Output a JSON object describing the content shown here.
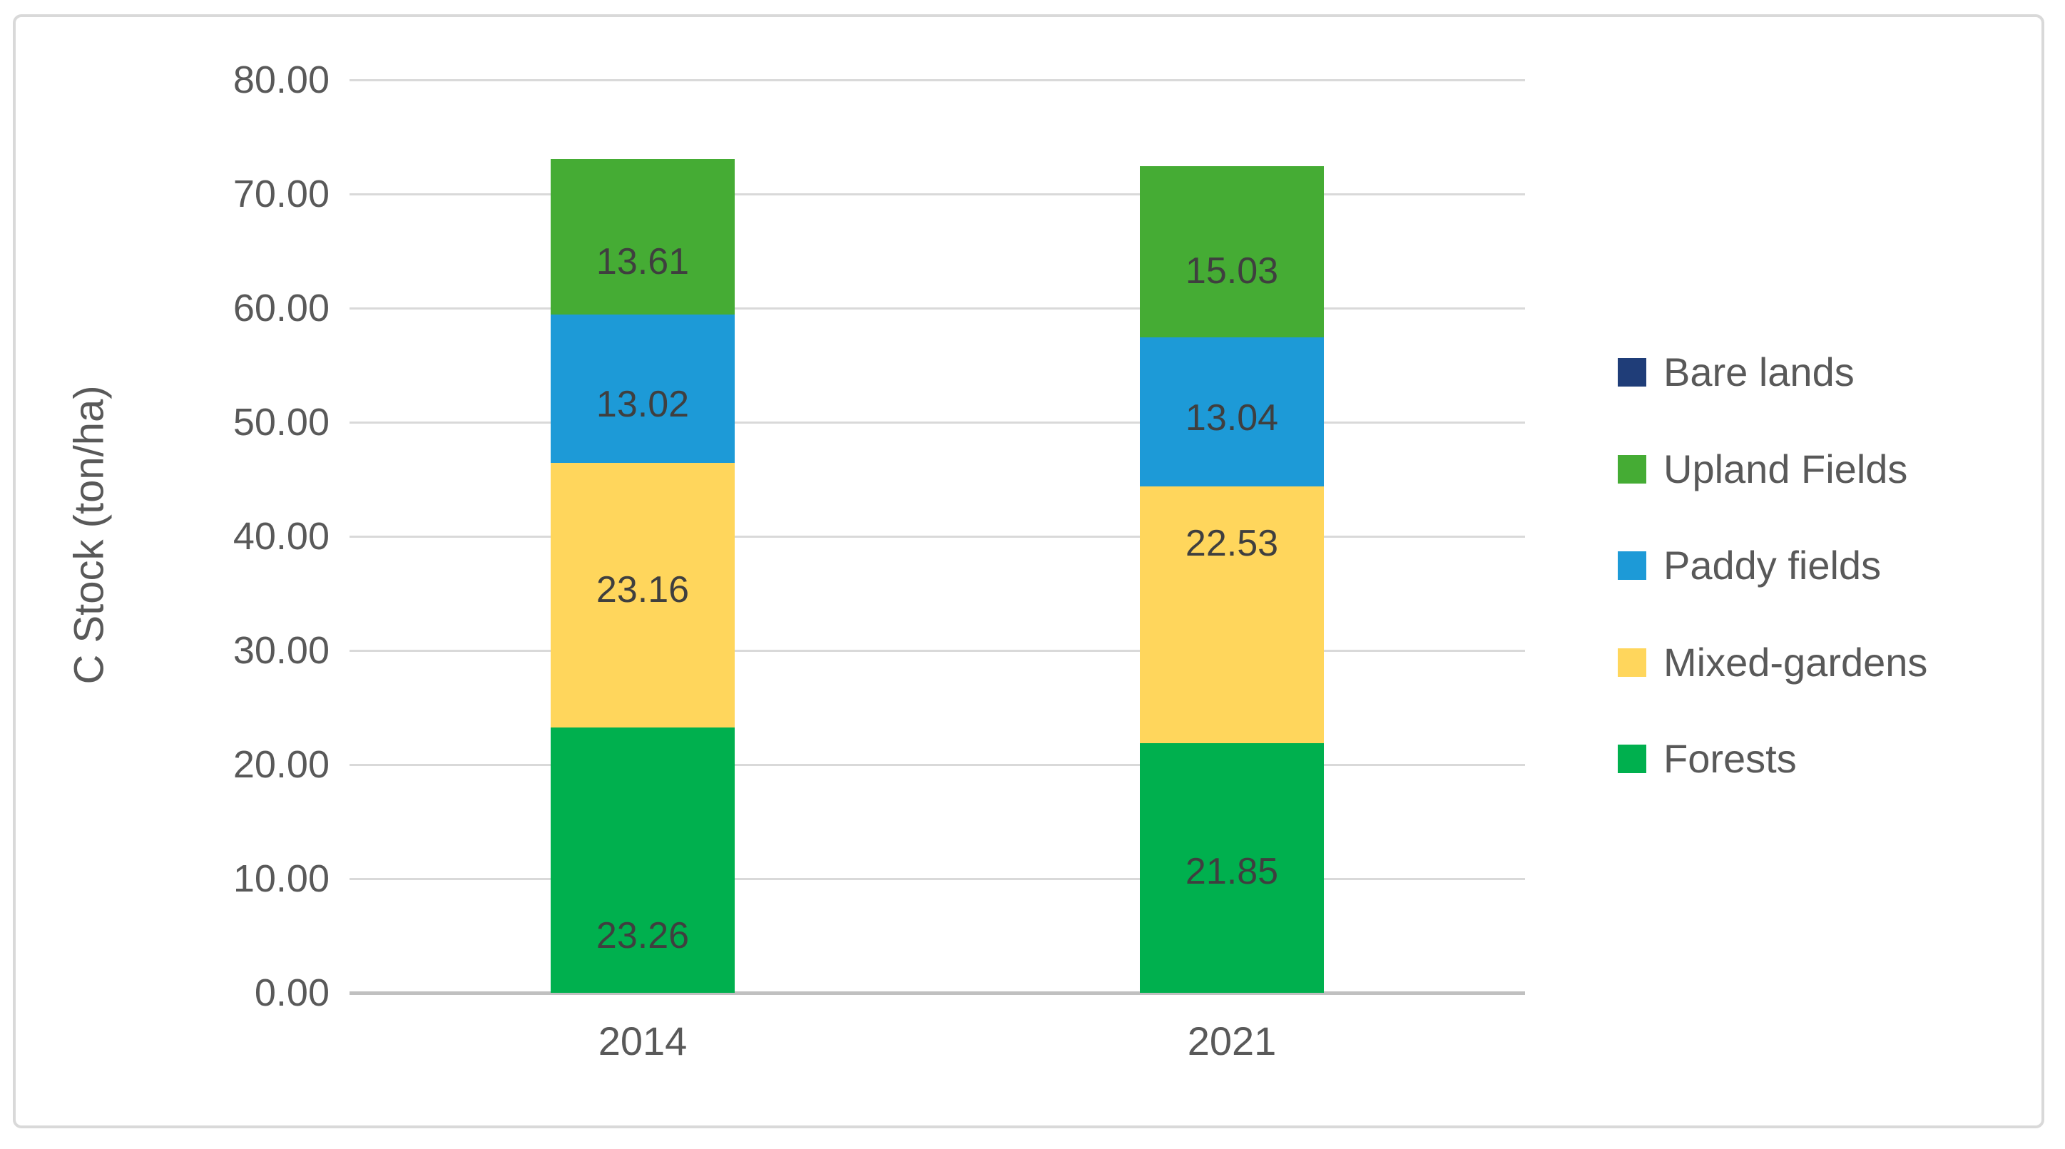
{
  "chart_data": {
    "type": "bar",
    "stacked": true,
    "title": "",
    "ylabel": "C Stock (ton/ha)",
    "xlabel": "",
    "categories": [
      "2014",
      "2021"
    ],
    "series": [
      {
        "name": "Bare lands",
        "color": "#1F3D78",
        "values": [
          0,
          0
        ]
      },
      {
        "name": "Upland Fields",
        "color": "#45AC34",
        "values": [
          13.61,
          15.03
        ]
      },
      {
        "name": "Paddy fields",
        "color": "#1D9AD7",
        "values": [
          13.02,
          13.04
        ]
      },
      {
        "name": "Mixed-gardens",
        "color": "#FFD65C",
        "values": [
          23.16,
          22.53
        ]
      },
      {
        "name": "Forests",
        "color": "#00B04E",
        "values": [
          23.26,
          21.85
        ]
      }
    ],
    "stack_order_bottom_to_top": [
      "Forests",
      "Mixed-gardens",
      "Paddy fields",
      "Upland Fields",
      "Bare lands"
    ],
    "data_labels": {
      "2014": [
        "13.61",
        "13.02",
        "23.16",
        "23.26"
      ],
      "2021": [
        "15.03",
        "13.04",
        "22.53",
        "21.85"
      ]
    },
    "ylim": [
      0,
      80
    ],
    "ytick_step": 10,
    "yticks": [
      "80.00",
      "70.00",
      "60.00",
      "50.00",
      "40.00",
      "30.00",
      "20.00",
      "10.00",
      "0.00"
    ],
    "grid": true,
    "legend_position": "right",
    "colors": {
      "gridline": "#D9D9D9",
      "axis_line": "#C0C0C0",
      "axis_text": "#595959",
      "data_label_text": "#3F3F3F",
      "figure_border": "#D9D9D9",
      "background": "#FFFFFF"
    }
  }
}
